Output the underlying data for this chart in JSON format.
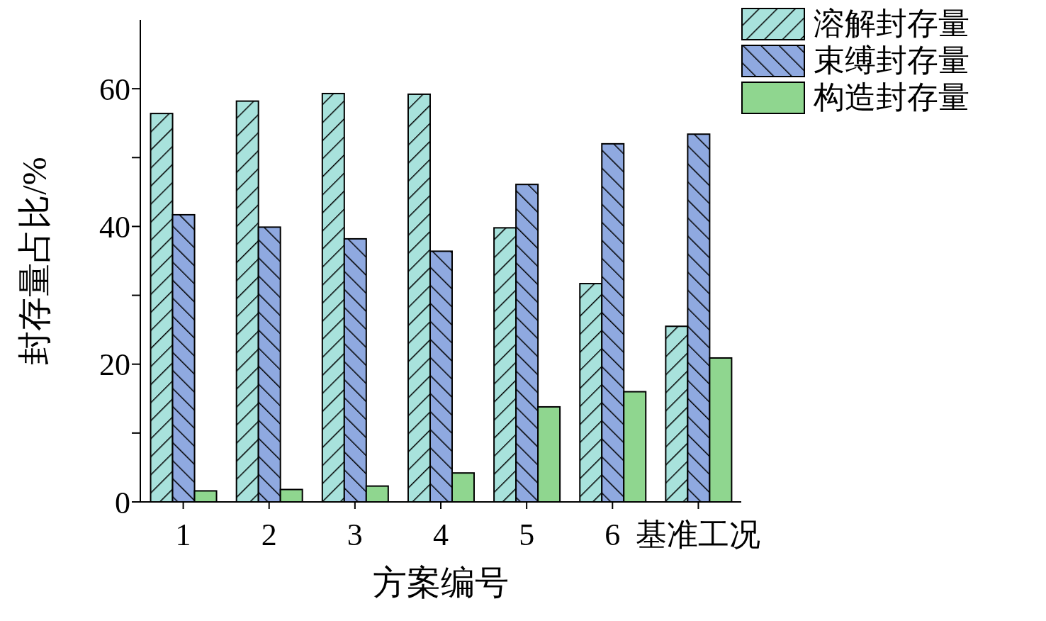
{
  "chart_data": {
    "type": "bar",
    "xlabel": "方案编号",
    "ylabel": "封存量占比/%",
    "categories": [
      "1",
      "2",
      "3",
      "4",
      "5",
      "6",
      "基准工况"
    ],
    "series": [
      {
        "name": "溶解封存量",
        "color": "#a8e2dc",
        "values": [
          56.4,
          58.2,
          59.3,
          59.2,
          39.8,
          31.7,
          25.5
        ]
      },
      {
        "name": "束缚封存量",
        "color": "#8fa9e0",
        "values": [
          41.7,
          39.9,
          38.2,
          36.4,
          46.1,
          52.0,
          53.4
        ]
      },
      {
        "name": "构造封存量",
        "color": "#8fd68f",
        "values": [
          1.6,
          1.8,
          2.3,
          4.2,
          13.8,
          16.0,
          20.9
        ]
      }
    ],
    "ylim": [
      0,
      70
    ],
    "yticks": [
      0,
      {
        "value": 10,
        "label": null
      },
      20,
      {
        "value": 30,
        "label": null
      },
      40,
      {
        "value": 50,
        "label": null
      },
      60
    ],
    "grid": false,
    "legend": "top right"
  }
}
